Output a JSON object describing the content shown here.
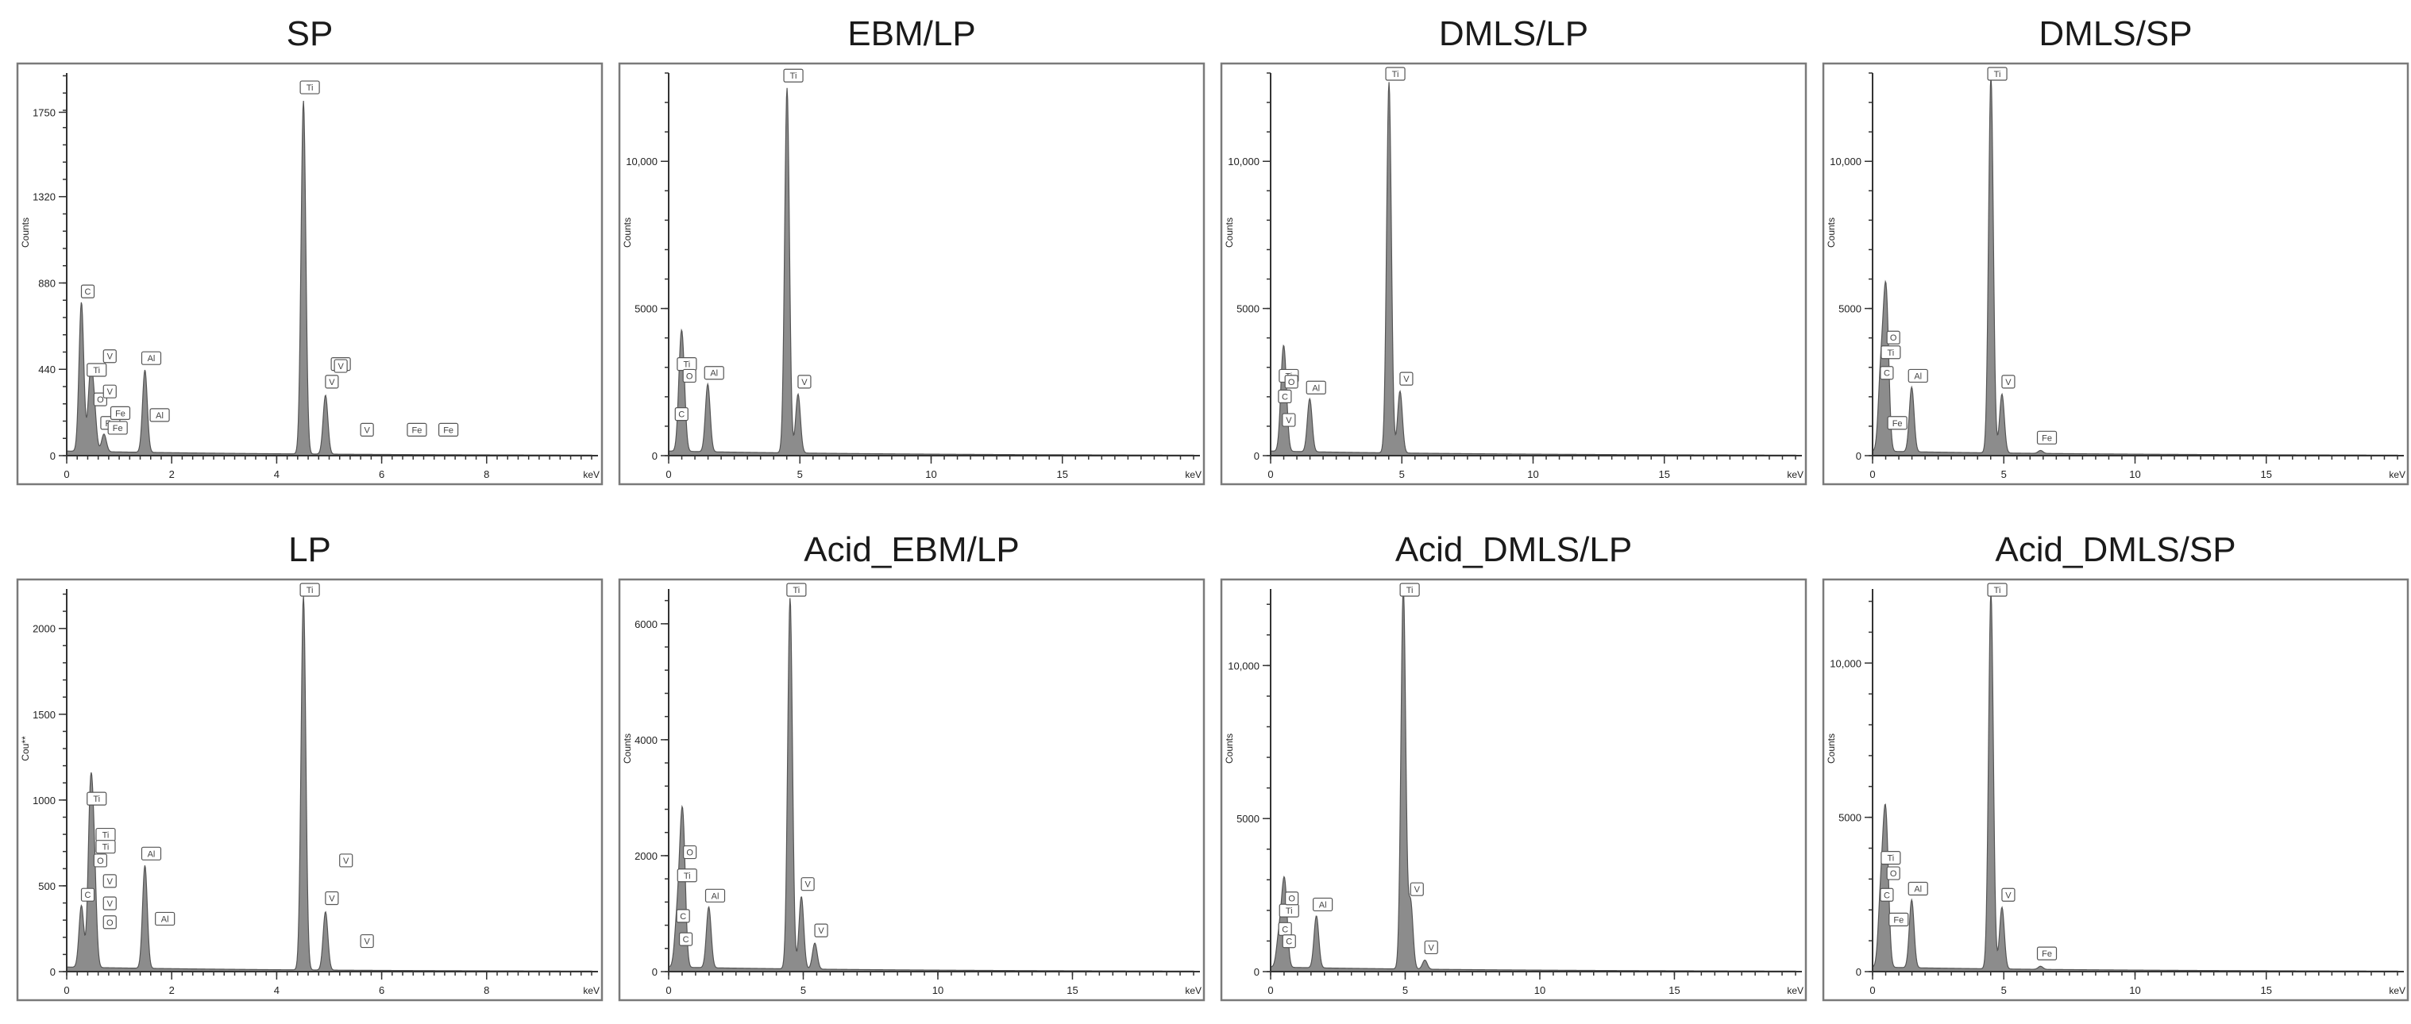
{
  "colors": {
    "spectrum_fill": "#8c8c8c",
    "spectrum_stroke": "#555555",
    "frame": "#7a7a7a"
  },
  "chart_data": [
    {
      "id": "sp",
      "type": "area",
      "title": "SP",
      "xlabel": "keV",
      "ylabel": "Counts",
      "xlim": [
        0,
        10
      ],
      "ylim": [
        0,
        1950
      ],
      "xticks": [
        0,
        2,
        4,
        6,
        8
      ],
      "xtick_labels": [
        "0",
        "2",
        "4",
        "6",
        "8"
      ],
      "yticks": [
        0,
        440,
        880,
        1320,
        1750
      ],
      "ytick_labels": [
        "0",
        "440",
        "880",
        "1320",
        "1750"
      ],
      "peaks": [
        {
          "x": 0.28,
          "y": 760,
          "label": "C"
        },
        {
          "x": 0.45,
          "y": 360,
          "label": "Ti"
        },
        {
          "x": 0.52,
          "y": 210,
          "label": "O"
        },
        {
          "x": 0.71,
          "y": 90,
          "label": "Fe"
        },
        {
          "x": 1.49,
          "y": 420,
          "label": "Al"
        },
        {
          "x": 4.51,
          "y": 1800,
          "label": "Ti"
        },
        {
          "x": 4.93,
          "y": 300,
          "label": "V"
        }
      ],
      "annotations": [
        {
          "x": 0.7,
          "y": 430,
          "label": "V"
        },
        {
          "x": 0.7,
          "y": 250,
          "label": "V"
        },
        {
          "x": 0.9,
          "y": 140,
          "label": "Fe"
        },
        {
          "x": 0.85,
          "y": 65,
          "label": "Fe"
        },
        {
          "x": 1.65,
          "y": 130,
          "label": "Al"
        },
        {
          "x": 5.1,
          "y": 390,
          "label": "Ti"
        },
        {
          "x": 5.1,
          "y": 380,
          "label": "V"
        },
        {
          "x": 5.6,
          "y": 55,
          "label": "V"
        },
        {
          "x": 6.55,
          "y": 55,
          "label": "Fe"
        },
        {
          "x": 7.15,
          "y": 55,
          "label": "Fe"
        }
      ],
      "annotation_offsets": [
        0,
        0,
        0,
        0,
        0,
        0,
        0,
        0,
        0,
        0
      ]
    },
    {
      "id": "ebm-lp",
      "type": "area",
      "title": "EBM/LP",
      "xlabel": "keV",
      "ylabel": "Counts",
      "xlim": [
        0,
        20
      ],
      "ylim": [
        0,
        13000
      ],
      "xticks": [
        0,
        5,
        10,
        15
      ],
      "xtick_labels": [
        "0",
        "5",
        "10",
        "15"
      ],
      "yticks": [
        0,
        5000,
        10000
      ],
      "ytick_labels": [
        "0",
        "5000",
        "10,000"
      ],
      "peaks": [
        {
          "x": 0.45,
          "y": 2600,
          "label": "Ti"
        },
        {
          "x": 0.55,
          "y": 2200,
          "label": "O"
        },
        {
          "x": 1.49,
          "y": 2300,
          "label": "Al"
        },
        {
          "x": 4.51,
          "y": 12400,
          "label": "Ti"
        },
        {
          "x": 4.93,
          "y": 2000,
          "label": "V"
        }
      ],
      "annotations": [
        {
          "x": 0.25,
          "y": 900,
          "label": "C"
        }
      ]
    },
    {
      "id": "dmls-lp",
      "type": "area",
      "title": "DMLS/LP",
      "xlabel": "keV",
      "ylabel": "Counts",
      "xlim": [
        0,
        20
      ],
      "ylim": [
        0,
        13000
      ],
      "xticks": [
        0,
        5,
        10,
        15
      ],
      "xtick_labels": [
        "0",
        "5",
        "10",
        "15"
      ],
      "yticks": [
        0,
        5000,
        10000
      ],
      "ytick_labels": [
        "0",
        "5000",
        "10,000"
      ],
      "peaks": [
        {
          "x": 0.45,
          "y": 2200,
          "label": "Ti"
        },
        {
          "x": 0.55,
          "y": 2000,
          "label": "O"
        },
        {
          "x": 1.49,
          "y": 1800,
          "label": "Al"
        },
        {
          "x": 4.51,
          "y": 12600,
          "label": "Ti"
        },
        {
          "x": 4.93,
          "y": 2100,
          "label": "V"
        }
      ],
      "annotations": [
        {
          "x": 0.3,
          "y": 1500,
          "label": "C"
        },
        {
          "x": 0.45,
          "y": 700,
          "label": "V"
        }
      ]
    },
    {
      "id": "dmls-sp",
      "type": "area",
      "title": "DMLS/SP",
      "xlabel": "keV",
      "ylabel": "Counts",
      "xlim": [
        0,
        20
      ],
      "ylim": [
        0,
        13000
      ],
      "xticks": [
        0,
        5,
        10,
        15
      ],
      "xtick_labels": [
        "0",
        "5",
        "10",
        "15"
      ],
      "yticks": [
        0,
        5000,
        10000
      ],
      "ytick_labels": [
        "0",
        "5000",
        "10,000"
      ],
      "peaks": [
        {
          "x": 0.3,
          "y": 2300,
          "label": "C"
        },
        {
          "x": 0.45,
          "y": 3000,
          "label": "Ti"
        },
        {
          "x": 0.55,
          "y": 3500,
          "label": "O"
        },
        {
          "x": 1.49,
          "y": 2200,
          "label": "Al"
        },
        {
          "x": 4.51,
          "y": 12800,
          "label": "Ti"
        },
        {
          "x": 4.93,
          "y": 2000,
          "label": "V"
        },
        {
          "x": 6.4,
          "y": 100,
          "label": "Fe"
        }
      ],
      "annotations": [
        {
          "x": 0.7,
          "y": 600,
          "label": "Fe"
        }
      ]
    },
    {
      "id": "lp",
      "type": "area",
      "title": "LP",
      "xlabel": "keV",
      "ylabel": "Cou**",
      "xlim": [
        0,
        10
      ],
      "ylim": [
        0,
        2230
      ],
      "xticks": [
        0,
        2,
        4,
        6,
        8
      ],
      "xtick_labels": [
        "0",
        "2",
        "4",
        "6",
        "8"
      ],
      "yticks": [
        0,
        500,
        1000,
        1500,
        2000
      ],
      "ytick_labels": [
        "0",
        "500",
        "1000",
        "1500",
        "2000"
      ],
      "peaks": [
        {
          "x": 0.28,
          "y": 360,
          "label": "C"
        },
        {
          "x": 0.45,
          "y": 920,
          "label": "Ti"
        },
        {
          "x": 0.52,
          "y": 560,
          "label": "O"
        },
        {
          "x": 1.49,
          "y": 600,
          "label": "Al"
        },
        {
          "x": 4.51,
          "y": 2180,
          "label": "Ti"
        },
        {
          "x": 4.93,
          "y": 340,
          "label": "V"
        }
      ],
      "annotations": [
        {
          "x": 0.62,
          "y": 710,
          "label": "Ti"
        },
        {
          "x": 0.62,
          "y": 640,
          "label": "Ti"
        },
        {
          "x": 0.7,
          "y": 440,
          "label": "V"
        },
        {
          "x": 0.7,
          "y": 310,
          "label": "V"
        },
        {
          "x": 0.7,
          "y": 200,
          "label": "O"
        },
        {
          "x": 1.75,
          "y": 220,
          "label": "Al"
        },
        {
          "x": 5.2,
          "y": 560,
          "label": "V"
        },
        {
          "x": 5.6,
          "y": 90,
          "label": "V"
        }
      ]
    },
    {
      "id": "acid-ebm-lp",
      "type": "area",
      "title": "Acid_EBM/LP",
      "xlabel": "keV",
      "ylabel": "Counts",
      "xlim": [
        0,
        19.5
      ],
      "ylim": [
        0,
        6600
      ],
      "xticks": [
        0,
        5,
        10,
        15
      ],
      "xtick_labels": [
        "0",
        "5",
        "10",
        "15"
      ],
      "yticks": [
        0,
        2000,
        4000,
        6000
      ],
      "ytick_labels": [
        "0",
        "2000",
        "4000",
        "6000"
      ],
      "peaks": [
        {
          "x": 0.3,
          "y": 700,
          "label": "C"
        },
        {
          "x": 0.45,
          "y": 1400,
          "label": "Ti"
        },
        {
          "x": 0.55,
          "y": 1800,
          "label": "O"
        },
        {
          "x": 1.49,
          "y": 1050,
          "label": "Al"
        },
        {
          "x": 4.51,
          "y": 6400,
          "label": "Ti"
        },
        {
          "x": 4.93,
          "y": 1250,
          "label": "V"
        },
        {
          "x": 5.43,
          "y": 450,
          "label": "V"
        }
      ],
      "annotations": [
        {
          "x": 0.4,
          "y": 300,
          "label": "C"
        }
      ]
    },
    {
      "id": "acid-dmls-lp",
      "type": "area",
      "title": "Acid_DMLS/LP",
      "xlabel": "keV",
      "ylabel": "Counts",
      "xlim": [
        0,
        19.5
      ],
      "ylim": [
        0,
        12500
      ],
      "xticks": [
        0,
        5,
        10,
        15
      ],
      "xtick_labels": [
        "0",
        "5",
        "10",
        "15"
      ],
      "yticks": [
        0,
        5000,
        10000
      ],
      "ytick_labels": [
        "0",
        "5000",
        "10,000"
      ],
      "peaks": [
        {
          "x": 0.3,
          "y": 900,
          "label": "C"
        },
        {
          "x": 0.45,
          "y": 1500,
          "label": "Ti"
        },
        {
          "x": 0.55,
          "y": 1900,
          "label": "O"
        },
        {
          "x": 1.7,
          "y": 1700,
          "label": "Al"
        },
        {
          "x": 4.93,
          "y": 12500,
          "label": "Ti"
        },
        {
          "x": 5.2,
          "y": 2200,
          "label": "V"
        },
        {
          "x": 5.73,
          "y": 300,
          "label": "V"
        }
      ],
      "annotations": [
        {
          "x": 0.45,
          "y": 500,
          "label": "C"
        }
      ]
    },
    {
      "id": "acid-dmls-sp",
      "type": "area",
      "title": "Acid_DMLS/SP",
      "xlabel": "keV",
      "ylabel": "Counts",
      "xlim": [
        0,
        20
      ],
      "ylim": [
        0,
        12400
      ],
      "xticks": [
        0,
        5,
        10,
        15
      ],
      "xtick_labels": [
        "0",
        "5",
        "10",
        "15"
      ],
      "yticks": [
        0,
        5000,
        10000
      ],
      "ytick_labels": [
        "0",
        "5000",
        "10,000"
      ],
      "peaks": [
        {
          "x": 0.3,
          "y": 2000,
          "label": "C"
        },
        {
          "x": 0.45,
          "y": 3200,
          "label": "Ti"
        },
        {
          "x": 0.55,
          "y": 2700,
          "label": "O"
        },
        {
          "x": 1.49,
          "y": 2200,
          "label": "Al"
        },
        {
          "x": 4.51,
          "y": 12200,
          "label": "Ti"
        },
        {
          "x": 4.93,
          "y": 2000,
          "label": "V"
        },
        {
          "x": 6.4,
          "y": 100,
          "label": "Fe"
        }
      ],
      "annotations": [
        {
          "x": 0.75,
          "y": 1200,
          "label": "Fe"
        }
      ]
    }
  ]
}
